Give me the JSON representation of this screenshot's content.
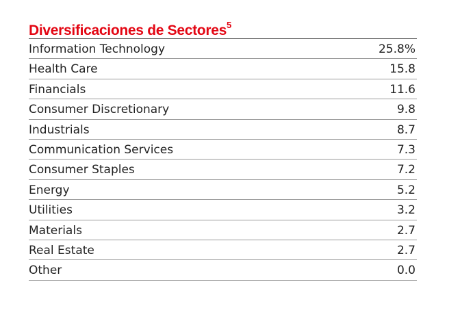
{
  "title": "Diversificaciones de Sectores",
  "title_sup": "5",
  "rows": [
    {
      "label": "Information Technology",
      "value": "25.8%"
    },
    {
      "label": "Health Care",
      "value": "15.8"
    },
    {
      "label": "Financials",
      "value": "11.6"
    },
    {
      "label": "Consumer Discretionary",
      "value": "9.8"
    },
    {
      "label": "Industrials",
      "value": "8.7"
    },
    {
      "label": "Communication Services",
      "value": "7.3"
    },
    {
      "label": "Consumer Staples",
      "value": "7.2"
    },
    {
      "label": "Energy",
      "value": "5.2"
    },
    {
      "label": "Utilities",
      "value": "3.2"
    },
    {
      "label": "Materials",
      "value": "2.7"
    },
    {
      "label": "Real Estate",
      "value": "2.7"
    },
    {
      "label": "Other",
      "value": "0.0"
    }
  ]
}
